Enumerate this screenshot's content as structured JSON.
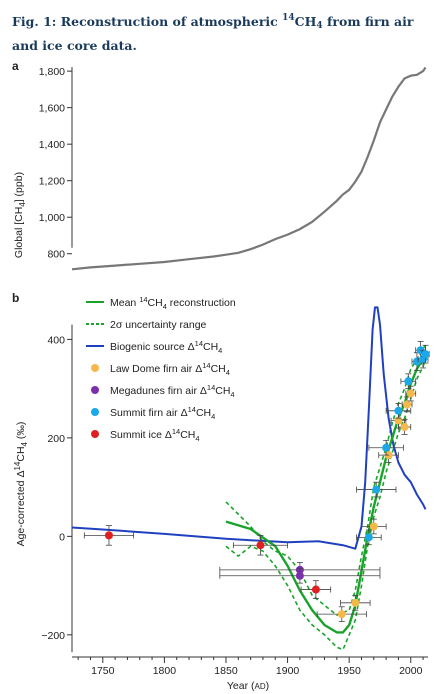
{
  "caption": {
    "prefix": "Fig. 1: Reconstruction of atmospheric ",
    "sup": "14",
    "mid": "CH",
    "sub": "4",
    "suffix": " from firn air and ice core data."
  },
  "chart_data": [
    {
      "panel": "a",
      "type": "line",
      "ylabel": "Global [CH4] (ppb)",
      "ylabel_parts": {
        "pre": "Global [CH",
        "sub": "4",
        "post": "] (ppb)"
      },
      "xlim": [
        1725,
        2014
      ],
      "ylim": [
        700,
        1850
      ],
      "yticks": [
        800,
        1000,
        1200,
        1400,
        1600,
        1800
      ],
      "ytick_labels": [
        "800",
        "1,000",
        "1,200",
        "1,400",
        "1,600",
        "1,800"
      ],
      "series": [
        {
          "color": "#777777",
          "x": [
            1725,
            1740,
            1760,
            1780,
            1800,
            1820,
            1840,
            1850,
            1860,
            1870,
            1880,
            1890,
            1900,
            1910,
            1920,
            1930,
            1940,
            1945,
            1950,
            1955,
            1960,
            1965,
            1970,
            1975,
            1980,
            1985,
            1990,
            1995,
            2000,
            2005,
            2010,
            2012
          ],
          "y": [
            715,
            725,
            735,
            745,
            755,
            770,
            785,
            795,
            805,
            825,
            850,
            880,
            905,
            935,
            975,
            1030,
            1090,
            1125,
            1150,
            1195,
            1250,
            1330,
            1420,
            1520,
            1590,
            1660,
            1715,
            1760,
            1775,
            1780,
            1800,
            1820
          ]
        }
      ]
    },
    {
      "panel": "b",
      "type": "line",
      "xlabel": "Year",
      "xlabel_unit": "AD",
      "ylabel_parts": {
        "pre": "Age-corrected Δ",
        "sup": "14",
        "mid": "CH",
        "sub": "4",
        "post": " (‰)"
      },
      "xlim": [
        1725,
        2014
      ],
      "ylim": [
        -245,
        480
      ],
      "xticks": [
        1750,
        1800,
        1850,
        1900,
        1950,
        2000
      ],
      "xtick_labels": [
        "1750",
        "1800",
        "1850",
        "1900",
        "1950",
        "2000"
      ],
      "yticks": [
        -200,
        0,
        200,
        400
      ],
      "ytick_labels": [
        "−200",
        "0",
        "200",
        "400"
      ],
      "legend": [
        {
          "kind": "line",
          "color": "#1aa32a",
          "dash": false,
          "label_pre": "Mean ",
          "sup": "14",
          "label_mid": "CH",
          "sub": "4",
          "label_post": " reconstruction"
        },
        {
          "kind": "line",
          "color": "#1aa32a",
          "dash": true,
          "label_pre": "2σ uncertainty range",
          "sup": "",
          "label_mid": "",
          "sub": "",
          "label_post": ""
        },
        {
          "kind": "line",
          "color": "#2040c0",
          "dash": false,
          "label_pre": "Biogenic source Δ",
          "sup": "14",
          "label_mid": "CH",
          "sub": "4",
          "label_post": ""
        },
        {
          "kind": "dot",
          "color": "#f5b94a",
          "label_pre": "Law Dome firn air Δ",
          "sup": "14",
          "label_mid": "CH",
          "sub": "4",
          "label_post": ""
        },
        {
          "kind": "dot",
          "color": "#7b2fa8",
          "label_pre": "Megadunes firn air Δ",
          "sup": "14",
          "label_mid": "CH",
          "sub": "4",
          "label_post": ""
        },
        {
          "kind": "dot",
          "color": "#1aa8e8",
          "label_pre": "Summit firn air Δ",
          "sup": "14",
          "label_mid": "CH",
          "sub": "4",
          "label_post": ""
        },
        {
          "kind": "dot",
          "color": "#e02020",
          "label_pre": "Summit ice Δ",
          "sup": "14",
          "label_mid": "CH",
          "sub": "4",
          "label_post": ""
        }
      ],
      "lines": {
        "mean": {
          "x": [
            1850,
            1870,
            1890,
            1900,
            1910,
            1920,
            1930,
            1940,
            1945,
            1950,
            1955,
            1960,
            1965,
            1970,
            1975,
            1980,
            1985,
            1990,
            1995,
            2000,
            2005,
            2010,
            2012
          ],
          "y": [
            30,
            15,
            -20,
            -60,
            -110,
            -150,
            -180,
            -195,
            -195,
            -180,
            -140,
            -70,
            0,
            60,
            110,
            160,
            200,
            240,
            270,
            310,
            340,
            360,
            375
          ]
        },
        "upper": {
          "x": [
            1850,
            1870,
            1880,
            1890,
            1900,
            1910,
            1920,
            1930,
            1940,
            1950,
            1955,
            1960,
            1965,
            1970,
            1975,
            1980,
            1985,
            1990,
            1995,
            2000,
            2005,
            2010,
            2012
          ],
          "y": [
            70,
            20,
            -10,
            -30,
            -40,
            -70,
            -120,
            -140,
            -160,
            -150,
            -110,
            -40,
            20,
            100,
            140,
            180,
            230,
            270,
            300,
            340,
            360,
            380,
            390
          ]
        },
        "lower": {
          "x": [
            1850,
            1860,
            1870,
            1880,
            1890,
            1900,
            1910,
            1920,
            1930,
            1940,
            1945,
            1950,
            1955,
            1960,
            1965,
            1970,
            1975,
            1980,
            1985,
            1990,
            1995,
            2000,
            2005,
            2010,
            2012
          ],
          "y": [
            -20,
            -40,
            -20,
            -30,
            -60,
            -100,
            -150,
            -180,
            -200,
            -225,
            -230,
            -200,
            -170,
            -100,
            -20,
            40,
            80,
            130,
            170,
            210,
            240,
            280,
            320,
            345,
            360
          ]
        },
        "biogenic": {
          "x": [
            1725,
            1750,
            1800,
            1850,
            1900,
            1925,
            1945,
            1955,
            1960,
            1963,
            1966,
            1969,
            1971,
            1973,
            1975,
            1978,
            1982,
            1986,
            1990,
            1995,
            2000,
            2005,
            2010,
            2012
          ],
          "y": [
            18,
            14,
            5,
            -5,
            -12,
            -10,
            -18,
            -25,
            20,
            110,
            260,
            420,
            465,
            465,
            430,
            330,
            240,
            185,
            150,
            125,
            110,
            85,
            65,
            55
          ]
        }
      },
      "points": [
        {
          "series": "Summit ice",
          "color": "#e02020",
          "x": 1755,
          "y": 2,
          "xerr": 20,
          "yerr": 20
        },
        {
          "series": "Summit ice",
          "color": "#e02020",
          "x": 1878,
          "y": -18,
          "xerr": 22,
          "yerr": 20
        },
        {
          "series": "Summit ice",
          "color": "#e02020",
          "x": 1923,
          "y": -108,
          "xerr": 12,
          "yerr": 18
        },
        {
          "series": "Megadunes firn air",
          "color": "#7b2fa8",
          "x": 1910,
          "y": -68,
          "xerr": 65,
          "yerr": 15
        },
        {
          "series": "Megadunes firn air",
          "color": "#7b2fa8",
          "x": 1910,
          "y": -80,
          "xerr": 65,
          "yerr": 15
        },
        {
          "series": "Law Dome firn air",
          "color": "#f5b94a",
          "x": 1944,
          "y": -158,
          "xerr": 20,
          "yerr": 15
        },
        {
          "series": "Law Dome firn air",
          "color": "#f5b94a",
          "x": 1955,
          "y": -135,
          "xerr": 12,
          "yerr": 15
        },
        {
          "series": "Law Dome firn air",
          "color": "#f5b94a",
          "x": 1970,
          "y": 20,
          "xerr": 10,
          "yerr": 15
        },
        {
          "series": "Law Dome firn air",
          "color": "#f5b94a",
          "x": 1982,
          "y": 165,
          "xerr": 8,
          "yerr": 15
        },
        {
          "series": "Law Dome firn air",
          "color": "#f5b94a",
          "x": 1990,
          "y": 235,
          "xerr": 6,
          "yerr": 15
        },
        {
          "series": "Law Dome firn air",
          "color": "#f5b94a",
          "x": 1995,
          "y": 222,
          "xerr": 5,
          "yerr": 15
        },
        {
          "series": "Law Dome firn air",
          "color": "#f5b94a",
          "x": 1997,
          "y": 268,
          "xerr": 4,
          "yerr": 15
        },
        {
          "series": "Law Dome firn air",
          "color": "#f5b94a",
          "x": 2000,
          "y": 290,
          "xerr": 4,
          "yerr": 15
        },
        {
          "series": "Summit firn air",
          "color": "#1aa8e8",
          "x": 1966,
          "y": -2,
          "xerr": 10,
          "yerr": 15
        },
        {
          "series": "Summit firn air",
          "color": "#1aa8e8",
          "x": 1972,
          "y": 95,
          "xerr": 16,
          "yerr": 15
        },
        {
          "series": "Summit firn air",
          "color": "#1aa8e8",
          "x": 1980,
          "y": 180,
          "xerr": 14,
          "yerr": 15
        },
        {
          "series": "Summit firn air",
          "color": "#1aa8e8",
          "x": 1990,
          "y": 255,
          "xerr": 10,
          "yerr": 15
        },
        {
          "series": "Summit firn air",
          "color": "#1aa8e8",
          "x": 1998,
          "y": 315,
          "xerr": 6,
          "yerr": 15
        },
        {
          "series": "Summit firn air",
          "color": "#1aa8e8",
          "x": 2005,
          "y": 355,
          "xerr": 4,
          "yerr": 18
        },
        {
          "series": "Summit firn air",
          "color": "#1aa8e8",
          "x": 2008,
          "y": 378,
          "xerr": 4,
          "yerr": 18
        },
        {
          "series": "Summit firn air",
          "color": "#1aa8e8",
          "x": 2010,
          "y": 360,
          "xerr": 4,
          "yerr": 18
        },
        {
          "series": "Summit firn air",
          "color": "#1aa8e8",
          "x": 2012,
          "y": 370,
          "xerr": 3,
          "yerr": 18
        }
      ]
    }
  ]
}
